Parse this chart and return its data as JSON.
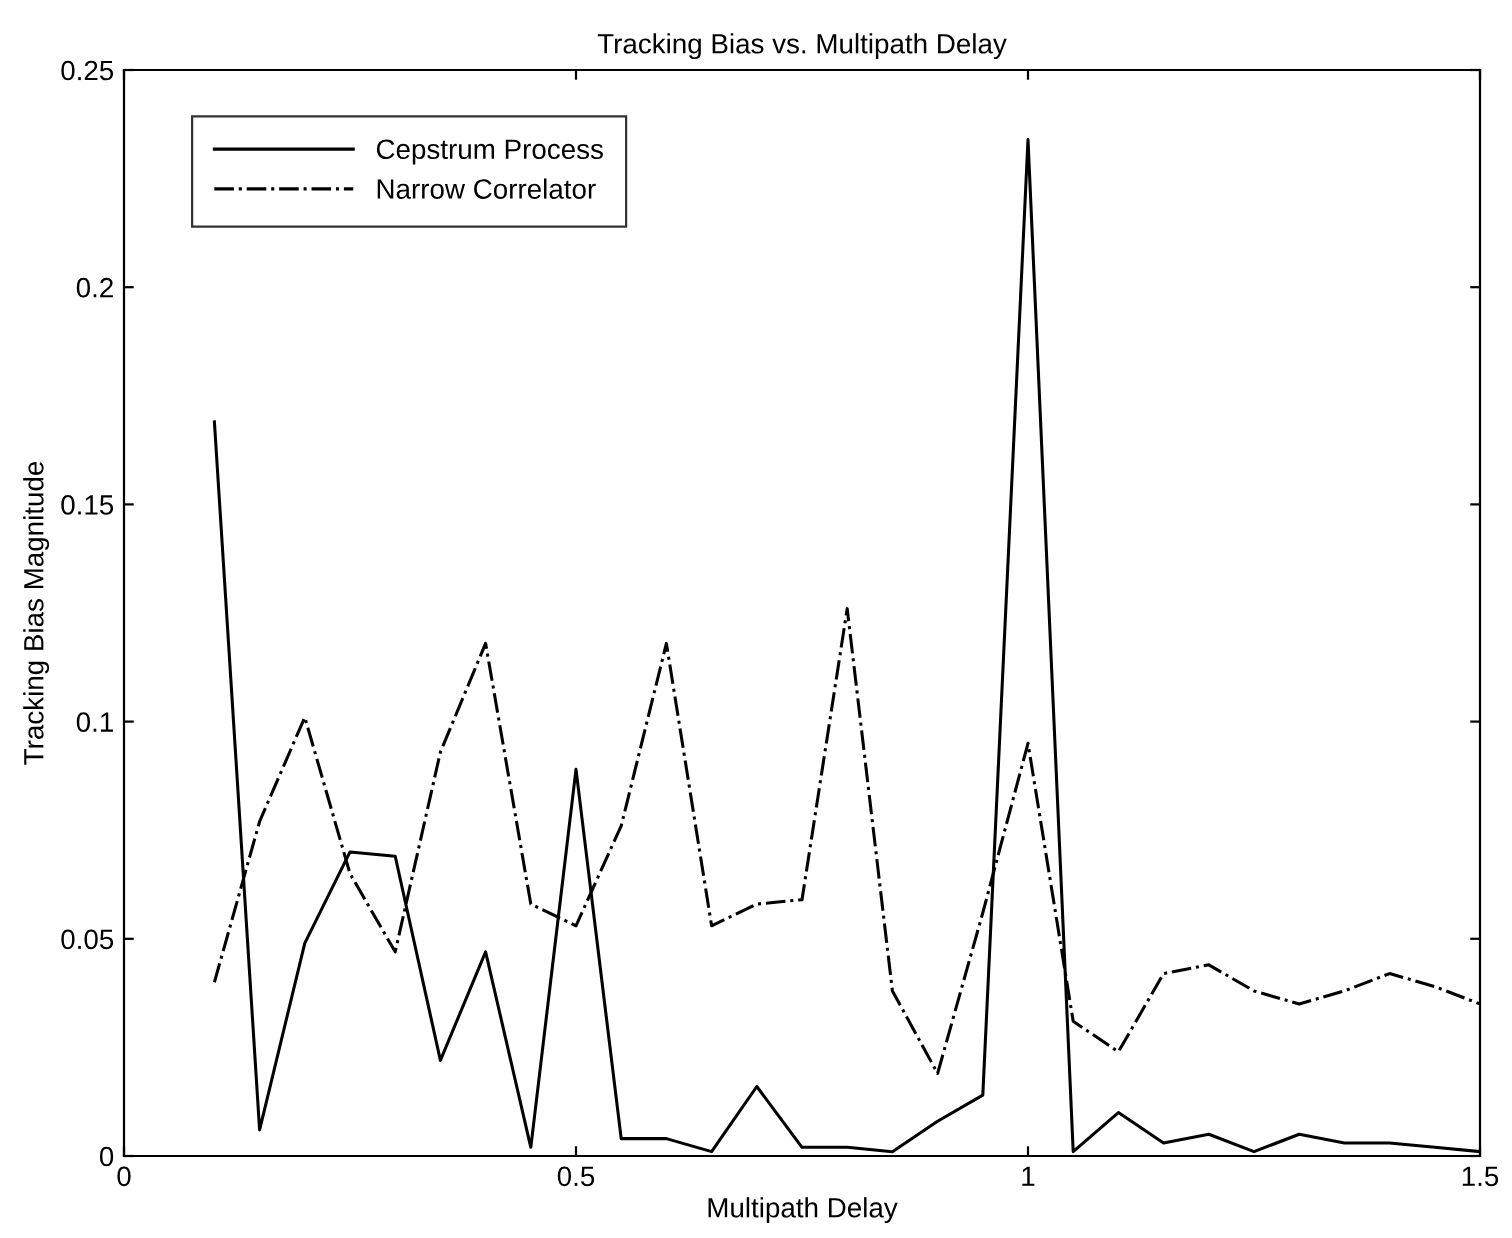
{
  "chart_data": {
    "type": "line",
    "title": "Tracking Bias vs. Multipath Delay",
    "xlabel": "Multipath Delay",
    "ylabel": "Tracking Bias Magnitude",
    "x": [
      0.1,
      0.15,
      0.2,
      0.25,
      0.3,
      0.35,
      0.4,
      0.45,
      0.5,
      0.55,
      0.6,
      0.65,
      0.7,
      0.75,
      0.8,
      0.85,
      0.9,
      0.95,
      1.0,
      1.05,
      1.1,
      1.15,
      1.2,
      1.25,
      1.3,
      1.35,
      1.4,
      1.45,
      1.5
    ],
    "series": [
      {
        "name": "Cepstrum Process",
        "color": "#000000",
        "line_style": "solid",
        "values": [
          0.169,
          0.006,
          0.049,
          0.07,
          0.069,
          0.022,
          0.047,
          0.002,
          0.089,
          0.004,
          0.004,
          0.001,
          0.016,
          0.002,
          0.002,
          0.001,
          0.008,
          0.014,
          0.234,
          0.001,
          0.01,
          0.003,
          0.005,
          0.001,
          0.005,
          0.003,
          0.003,
          0.002,
          0.001
        ]
      },
      {
        "name": "Narrow Correlator",
        "color": "#000000",
        "line_style": "dashdot",
        "values": [
          0.04,
          0.077,
          0.101,
          0.065,
          0.047,
          0.093,
          0.118,
          0.058,
          0.053,
          0.076,
          0.118,
          0.053,
          0.058,
          0.059,
          0.126,
          0.038,
          0.019,
          0.056,
          0.095,
          0.031,
          0.024,
          0.042,
          0.044,
          0.038,
          0.035,
          0.038,
          0.042,
          0.039,
          0.035
        ]
      }
    ],
    "xlim": [
      0,
      1.5
    ],
    "xticks": [
      0,
      0.5,
      1,
      1.5
    ],
    "ylim": [
      0,
      0.25
    ],
    "yticks": [
      0,
      0.05,
      0.1,
      0.15,
      0.2,
      0.25
    ],
    "grid": false,
    "legend": "top left",
    "marker": "none"
  }
}
